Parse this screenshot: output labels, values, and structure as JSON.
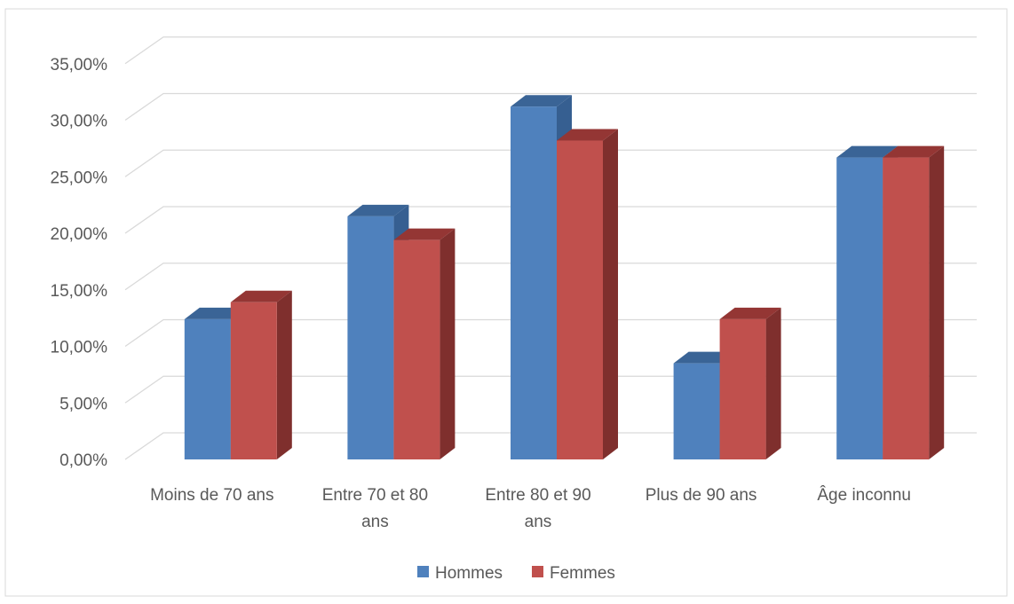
{
  "chart_data": {
    "type": "bar",
    "style": "3d-clustered-column",
    "categories": [
      [
        "Moins de 70 ans"
      ],
      [
        "Entre 70 et 80",
        "ans"
      ],
      [
        "Entre 80 et 90",
        "ans"
      ],
      [
        "Plus de 90 ans"
      ],
      [
        "Âge inconnu"
      ]
    ],
    "series": [
      {
        "name": "Hommes",
        "color": "#4F81BD",
        "side_color": "#365F91",
        "top_color": "#3A6496",
        "values": [
          12.4,
          21.5,
          31.2,
          8.5,
          26.7
        ]
      },
      {
        "name": "Femmes",
        "color": "#C0504D",
        "side_color": "#7F2F2D",
        "top_color": "#943634",
        "values": [
          13.9,
          19.4,
          28.2,
          12.4,
          26.7
        ]
      }
    ],
    "y_ticks": [
      "0,00%",
      "5,00%",
      "10,00%",
      "15,00%",
      "20,00%",
      "25,00%",
      "30,00%",
      "35,00%"
    ],
    "ylim": [
      0,
      35
    ],
    "y_step": 5,
    "grid": true,
    "legend_position": "bottom",
    "title": "",
    "xlabel": "",
    "ylabel": ""
  }
}
